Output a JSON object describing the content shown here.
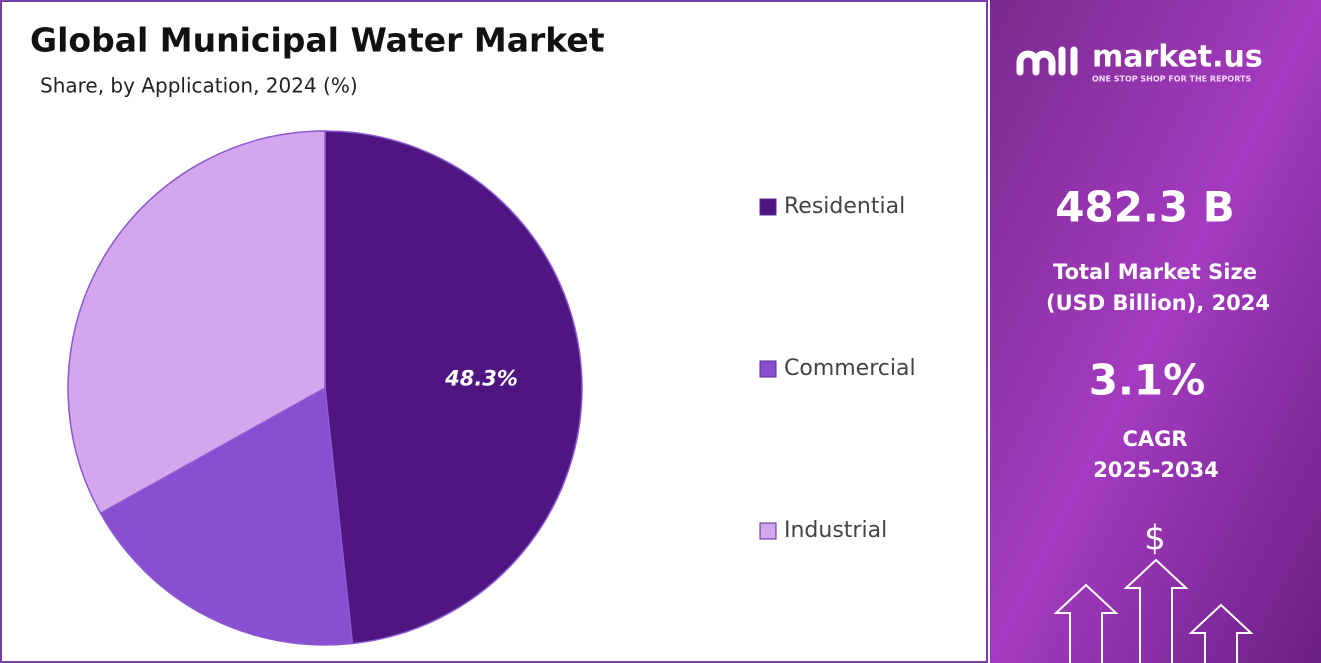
{
  "chart_data": {
    "type": "pie",
    "title": "Global Municipal Water Market",
    "subtitle": "Share, by Application, 2024 (%)",
    "categories": [
      "Residential",
      "Commercial",
      "Industrial"
    ],
    "values": [
      48.3,
      18.6,
      33.1
    ],
    "value_labels": [
      "48.3%",
      null,
      null
    ],
    "colors": [
      "#4f1580",
      "#8a4fd0",
      "#d3a6ee"
    ],
    "legend": "right"
  },
  "panel": {
    "brand": "market.us",
    "tagline": "ONE STOP SHOP FOR THE REPORTS",
    "market_size": "482.3 B",
    "market_size_label": [
      "Total Market Size",
      "(USD Billion), 2024"
    ],
    "cagr": "3.1%",
    "cagr_label": [
      "CAGR",
      "2025-2034"
    ],
    "icon_symbol": "$"
  }
}
